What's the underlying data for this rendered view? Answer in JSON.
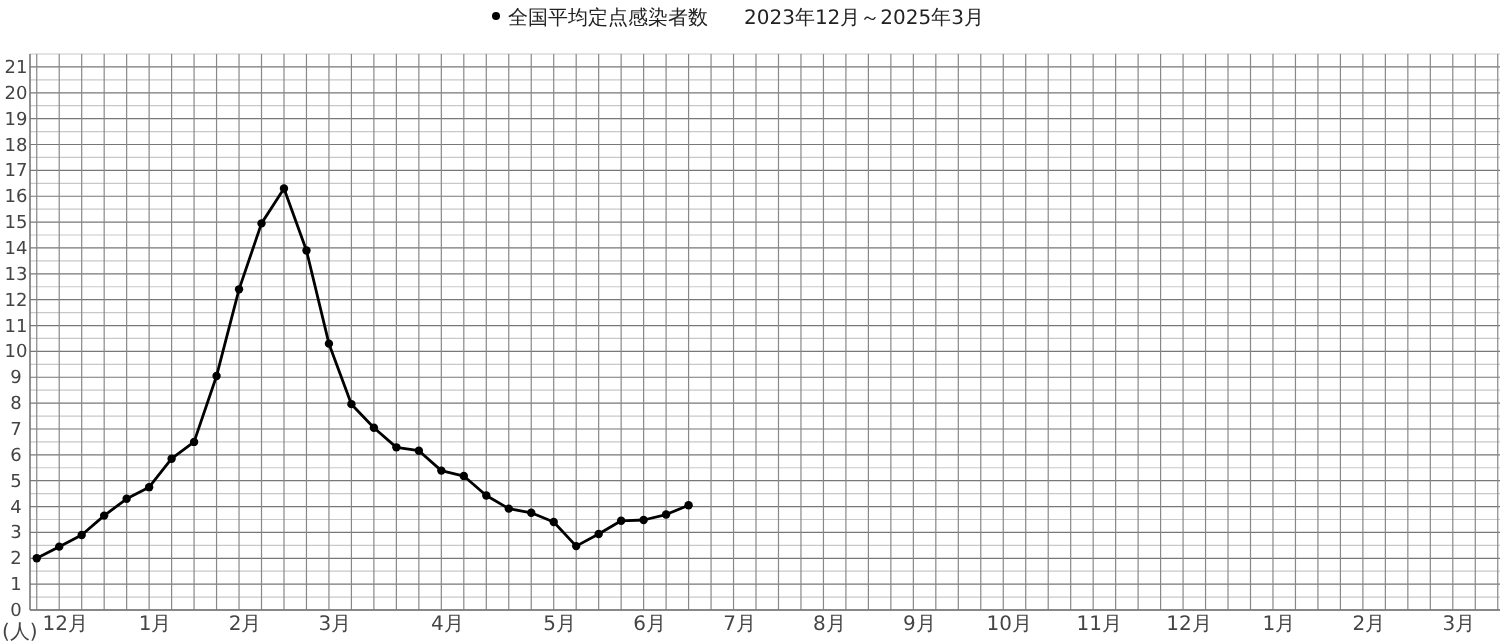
{
  "chart_data": {
    "type": "line",
    "title": "2023年12月～2025年3月",
    "ylabel": "(人)",
    "categories": [
      null,
      "12月",
      null,
      null,
      null,
      "1月",
      null,
      null,
      null,
      "2月",
      null,
      null,
      null,
      "3月",
      null,
      null,
      null,
      null,
      "4月",
      null,
      null,
      null,
      null,
      "5月",
      null,
      null,
      null,
      "6月",
      null,
      null,
      null,
      "7月",
      null,
      null,
      null,
      "8月",
      null,
      null,
      null,
      "9月",
      null,
      null,
      null,
      "10月",
      null,
      null,
      null,
      "11月",
      null,
      null,
      null,
      "12月",
      null,
      null,
      null,
      "1月",
      null,
      null,
      null,
      "2月",
      null,
      null,
      null,
      "3月",
      null,
      null
    ],
    "series": [
      {
        "name": "全国平均定点感染者数",
        "color": "#000000",
        "values": [
          2.0,
          2.45,
          2.9,
          3.65,
          4.3,
          4.75,
          5.85,
          6.5,
          9.05,
          12.4,
          14.95,
          16.3,
          13.9,
          10.3,
          7.96,
          7.05,
          6.29,
          6.16,
          5.39,
          5.18,
          4.43,
          3.92,
          3.76,
          3.4,
          2.47,
          2.94,
          3.45,
          3.48,
          3.69,
          4.05,
          null,
          null,
          null,
          null,
          null,
          null,
          null,
          null,
          null,
          null,
          null,
          null,
          null,
          null,
          null,
          null,
          null,
          null,
          null,
          null,
          null,
          null,
          null,
          null,
          null,
          null,
          null,
          null,
          null,
          null,
          null,
          null,
          null,
          null,
          null,
          null
        ]
      }
    ],
    "ylim": [
      0,
      21.5
    ],
    "yticks": [
      0,
      1,
      2,
      3,
      4,
      5,
      6,
      7,
      8,
      9,
      10,
      11,
      12,
      13,
      14,
      15,
      16,
      17,
      18,
      19,
      20,
      21,
      {
        "value": 0.5,
        "label": null
      },
      {
        "value": 1.5,
        "label": null
      },
      {
        "value": 2.5,
        "label": null
      },
      {
        "value": 3.5,
        "label": null
      },
      {
        "value": 4.5,
        "label": null
      },
      {
        "value": 5.5,
        "label": null
      },
      {
        "value": 6.5,
        "label": null
      },
      {
        "value": 7.5,
        "label": null
      },
      {
        "value": 8.5,
        "label": null
      },
      {
        "value": 9.5,
        "label": null
      },
      {
        "value": 10.5,
        "label": null
      },
      {
        "value": 11.5,
        "label": null
      },
      {
        "value": 12.5,
        "label": null
      },
      {
        "value": 13.5,
        "label": null
      },
      {
        "value": 14.5,
        "label": null
      },
      {
        "value": 15.5,
        "label": null
      },
      {
        "value": 16.5,
        "label": null
      },
      {
        "value": 17.5,
        "label": null
      },
      {
        "value": 18.5,
        "label": null
      },
      {
        "value": 19.5,
        "label": null
      },
      {
        "value": 20.5,
        "label": null
      },
      {
        "value": 21.5,
        "label": null
      }
    ],
    "grid": true,
    "legend": "top",
    "marker": "circle",
    "line_style": "solid"
  }
}
